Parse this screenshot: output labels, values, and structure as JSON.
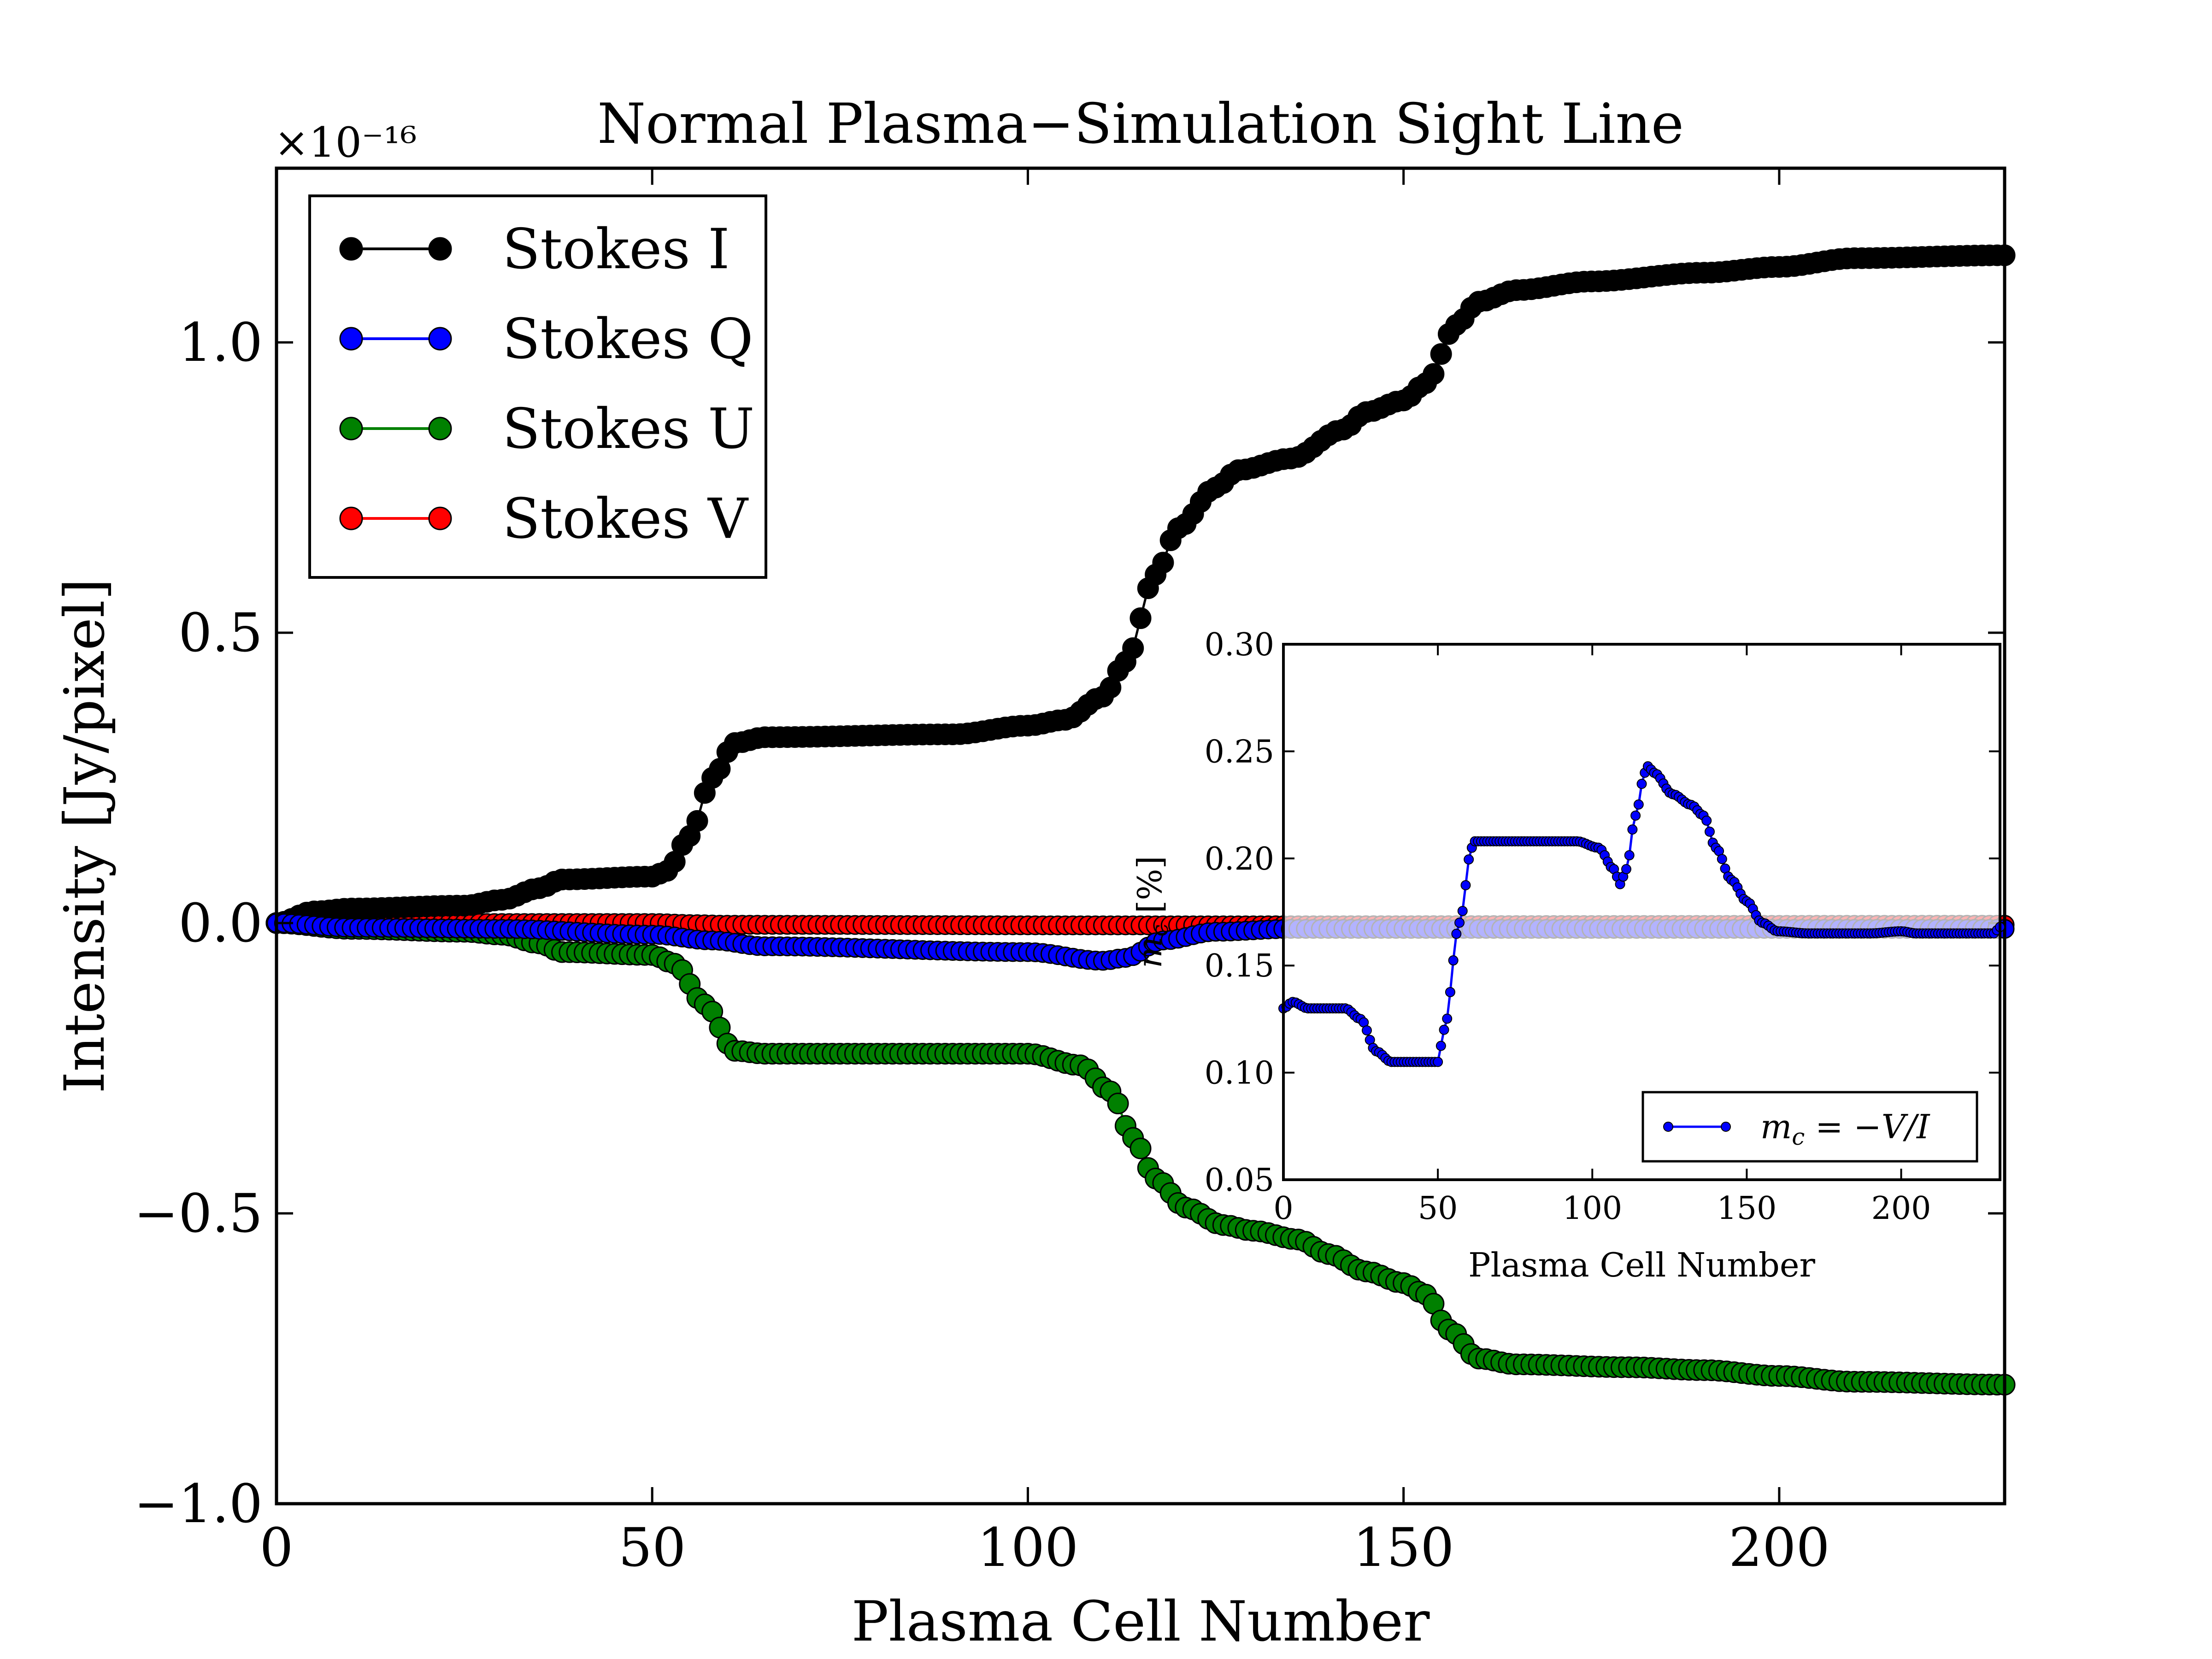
{
  "chart_data": [
    {
      "type": "scatter",
      "title": "Normal Plasma−Simulation Sight Line",
      "xlabel": "Plasma Cell Number",
      "ylabel": "Intensity [Jy/pixel]",
      "y_multiplier_label": "×10⁻¹⁶",
      "xlim": [
        0,
        230
      ],
      "ylim": [
        -1.0,
        1.3
      ],
      "x_ticks": [
        0,
        50,
        100,
        150,
        200
      ],
      "x_tick_labels": [
        "0",
        "50",
        "100",
        "150",
        "200"
      ],
      "y_ticks": [
        -1.0,
        -0.5,
        0.0,
        0.5,
        1.0
      ],
      "y_tick_labels": [
        "−1.0",
        "−0.5",
        "0.0",
        "0.5",
        "1.0"
      ],
      "legend_position": "top-left",
      "series": [
        {
          "name": "Stokes I",
          "color": "#000000",
          "knots": [
            [
              0,
              0.0
            ],
            [
              5,
              0.02
            ],
            [
              10,
              0.025
            ],
            [
              25,
              0.03
            ],
            [
              30,
              0.04
            ],
            [
              35,
              0.06
            ],
            [
              38,
              0.075
            ],
            [
              50,
              0.08
            ],
            [
              52,
              0.09
            ],
            [
              55,
              0.15
            ],
            [
              58,
              0.25
            ],
            [
              61,
              0.31
            ],
            [
              65,
              0.32
            ],
            [
              90,
              0.325
            ],
            [
              100,
              0.34
            ],
            [
              105,
              0.35
            ],
            [
              110,
              0.39
            ],
            [
              113,
              0.45
            ],
            [
              117,
              0.6
            ],
            [
              120,
              0.68
            ],
            [
              125,
              0.75
            ],
            [
              128,
              0.78
            ],
            [
              135,
              0.8
            ],
            [
              142,
              0.85
            ],
            [
              145,
              0.88
            ],
            [
              150,
              0.9
            ],
            [
              153,
              0.93
            ],
            [
              157,
              1.03
            ],
            [
              160,
              1.07
            ],
            [
              165,
              1.09
            ],
            [
              175,
              1.105
            ],
            [
              190,
              1.12
            ],
            [
              200,
              1.13
            ],
            [
              210,
              1.145
            ],
            [
              230,
              1.15
            ]
          ]
        },
        {
          "name": "Stokes Q",
          "color": "#0000ff",
          "knots": [
            [
              0,
              0.0
            ],
            [
              10,
              -0.008
            ],
            [
              30,
              -0.01
            ],
            [
              50,
              -0.02
            ],
            [
              58,
              -0.03
            ],
            [
              65,
              -0.04
            ],
            [
              100,
              -0.05
            ],
            [
              110,
              -0.065
            ],
            [
              113,
              -0.06
            ],
            [
              118,
              -0.03
            ],
            [
              125,
              -0.015
            ],
            [
              135,
              -0.01
            ],
            [
              160,
              -0.01
            ],
            [
              230,
              -0.01
            ]
          ]
        },
        {
          "name": "Stokes U",
          "color": "#008000",
          "knots": [
            [
              0,
              0.0
            ],
            [
              10,
              -0.01
            ],
            [
              25,
              -0.015
            ],
            [
              30,
              -0.02
            ],
            [
              35,
              -0.035
            ],
            [
              38,
              -0.05
            ],
            [
              50,
              -0.055
            ],
            [
              53,
              -0.07
            ],
            [
              57,
              -0.14
            ],
            [
              61,
              -0.22
            ],
            [
              65,
              -0.225
            ],
            [
              100,
              -0.225
            ],
            [
              107,
              -0.245
            ],
            [
              111,
              -0.29
            ],
            [
              114,
              -0.37
            ],
            [
              117,
              -0.44
            ],
            [
              121,
              -0.49
            ],
            [
              126,
              -0.52
            ],
            [
              130,
              -0.53
            ],
            [
              136,
              -0.545
            ],
            [
              140,
              -0.57
            ],
            [
              145,
              -0.6
            ],
            [
              150,
              -0.62
            ],
            [
              153,
              -0.64
            ],
            [
              156,
              -0.7
            ],
            [
              160,
              -0.75
            ],
            [
              165,
              -0.76
            ],
            [
              180,
              -0.765
            ],
            [
              190,
              -0.77
            ],
            [
              200,
              -0.78
            ],
            [
              210,
              -0.79
            ],
            [
              230,
              -0.795
            ]
          ]
        },
        {
          "name": "Stokes V",
          "color": "#ff0000",
          "knots": [
            [
              0,
              0.0
            ],
            [
              50,
              0.0
            ],
            [
              56,
              -0.002
            ],
            [
              60,
              -0.003
            ],
            [
              110,
              -0.004
            ],
            [
              230,
              -0.003
            ]
          ]
        }
      ]
    },
    {
      "type": "line",
      "inset": true,
      "title": "",
      "xlabel": "Plasma Cell Number",
      "ylabel": "m_c [%]",
      "ylabel_main": "m",
      "ylabel_sub": "c",
      "ylabel_rest": " [%]",
      "xlim": [
        0,
        232
      ],
      "ylim": [
        0.05,
        0.3
      ],
      "x_ticks": [
        0,
        50,
        100,
        150,
        200
      ],
      "x_tick_labels": [
        "0",
        "50",
        "100",
        "150",
        "200"
      ],
      "y_ticks": [
        0.05,
        0.1,
        0.15,
        0.2,
        0.25,
        0.3
      ],
      "y_tick_labels": [
        "0.05",
        "0.10",
        "0.15",
        "0.20",
        "0.25",
        "0.30"
      ],
      "legend_position": "bottom-right",
      "legend_label": "m_c = −V/I",
      "legend_main": "m",
      "legend_sub": "c",
      "legend_rest": " = −V/I",
      "series": [
        {
          "name": "m_c = −V/I",
          "color": "#0000ff",
          "knots": [
            [
              0,
              0.13
            ],
            [
              3,
              0.133
            ],
            [
              8,
              0.13
            ],
            [
              20,
              0.13
            ],
            [
              25,
              0.125
            ],
            [
              30,
              0.11
            ],
            [
              35,
              0.105
            ],
            [
              50,
              0.105
            ],
            [
              52,
              0.12
            ],
            [
              57,
              0.17
            ],
            [
              61,
              0.205
            ],
            [
              62,
              0.208
            ],
            [
              95,
              0.208
            ],
            [
              102,
              0.205
            ],
            [
              107,
              0.195
            ],
            [
              109,
              0.188
            ],
            [
              111,
              0.195
            ],
            [
              114,
              0.22
            ],
            [
              117,
              0.24
            ],
            [
              118,
              0.243
            ],
            [
              120,
              0.24
            ],
            [
              126,
              0.23
            ],
            [
              132,
              0.225
            ],
            [
              136,
              0.22
            ],
            [
              140,
              0.205
            ],
            [
              145,
              0.19
            ],
            [
              150,
              0.18
            ],
            [
              155,
              0.17
            ],
            [
              160,
              0.166
            ],
            [
              170,
              0.165
            ],
            [
              190,
              0.165
            ],
            [
              200,
              0.166
            ],
            [
              205,
              0.165
            ],
            [
              230,
              0.165
            ],
            [
              232,
              0.168
            ]
          ]
        }
      ]
    }
  ]
}
